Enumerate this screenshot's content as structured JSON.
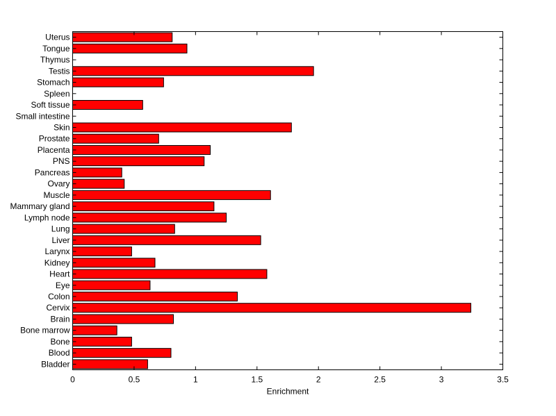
{
  "chart_data": {
    "type": "bar",
    "orientation": "horizontal",
    "categories": [
      "Bladder",
      "Blood",
      "Bone",
      "Bone marrow",
      "Brain",
      "Cervix",
      "Colon",
      "Eye",
      "Heart",
      "Kidney",
      "Larynx",
      "Liver",
      "Lung",
      "Lymph node",
      "Mammary gland",
      "Muscle",
      "Ovary",
      "Pancreas",
      "PNS",
      "Placenta",
      "Prostate",
      "Skin",
      "Small intestine",
      "Soft tissue",
      "Spleen",
      "Stomach",
      "Testis",
      "Thymus",
      "Tongue",
      "Uterus"
    ],
    "values": [
      0.61,
      0.8,
      0.48,
      0.36,
      0.82,
      3.24,
      1.34,
      0.63,
      1.58,
      0.67,
      0.48,
      1.53,
      0.83,
      1.25,
      1.15,
      1.61,
      0.42,
      0.4,
      1.07,
      1.12,
      0.7,
      1.78,
      0,
      0.57,
      0,
      0.74,
      1.96,
      0,
      0.93,
      0.81
    ],
    "xlabel": "Enrichment",
    "ylabel": "",
    "title": "",
    "xlim": [
      0,
      3.5
    ],
    "xticks": [
      0,
      0.5,
      1,
      1.5,
      2,
      2.5,
      3,
      3.5
    ],
    "xtick_labels": [
      "0",
      "0.5",
      "1",
      "1.5",
      "2",
      "2.5",
      "3",
      "3.5"
    ],
    "grid": false,
    "bar_color": "#ff0000",
    "bar_edge_color": "#000000"
  }
}
